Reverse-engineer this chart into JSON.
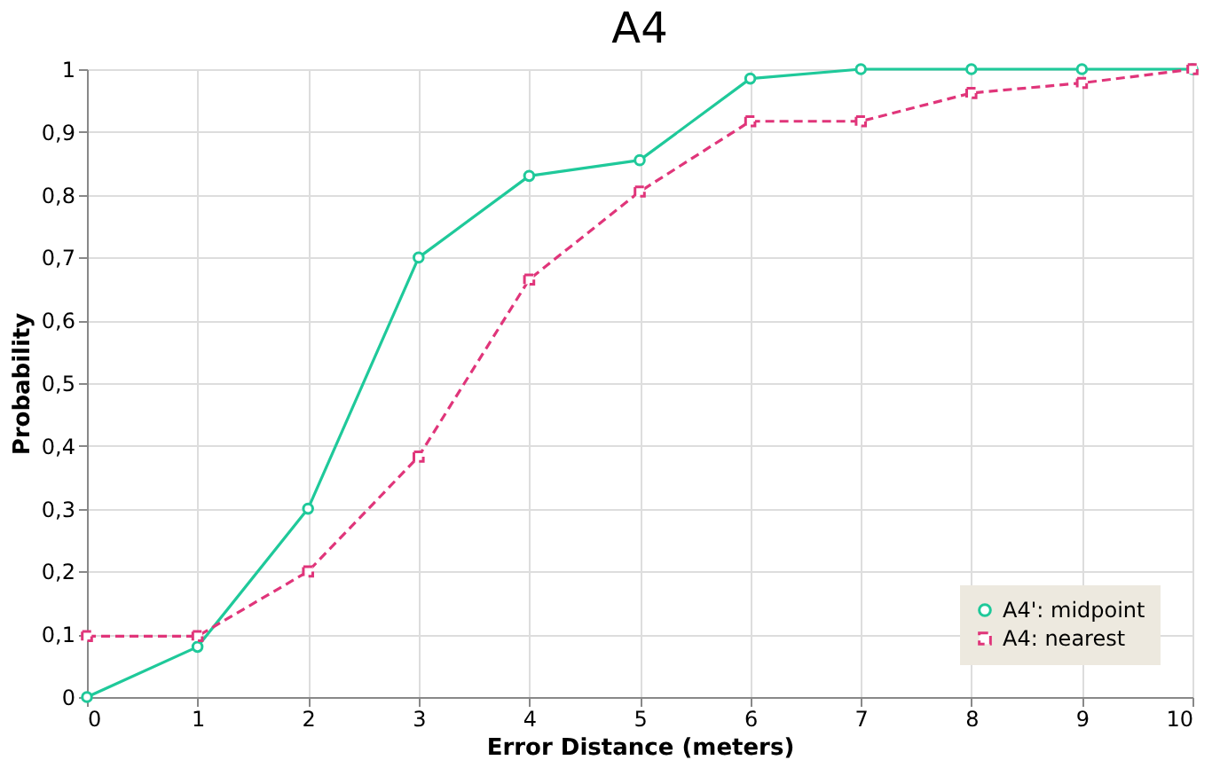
{
  "chart_data": {
    "type": "line",
    "title": "A4",
    "xlabel": "Error Distance (meters)",
    "ylabel": "Probability",
    "x": [
      0,
      1,
      2,
      3,
      4,
      5,
      6,
      7,
      8,
      9,
      10
    ],
    "series": [
      {
        "name": "A4': midpoint",
        "color": "#1fc99a",
        "marker": "circle",
        "line_style": "solid",
        "values": [
          0,
          0.08,
          0.3,
          0.7,
          0.83,
          0.855,
          0.985,
          1,
          1,
          1,
          1
        ]
      },
      {
        "name": "A4: nearest",
        "color": "#e0357a",
        "marker": "square",
        "line_style": "dashed",
        "values": [
          0.097,
          0.097,
          0.2,
          0.383,
          0.665,
          0.805,
          0.917,
          0.917,
          0.962,
          0.978,
          1
        ]
      }
    ],
    "xlim": [
      0,
      10
    ],
    "xticks": [
      0,
      1,
      2,
      3,
      4,
      5,
      6,
      7,
      8,
      9,
      10
    ],
    "ylim": [
      0,
      1
    ],
    "yticks": [
      0,
      {
        "value": 0.1,
        "label": "0,1"
      },
      {
        "value": 0.2,
        "label": "0,2"
      },
      {
        "value": 0.3,
        "label": "0,3"
      },
      {
        "value": 0.4,
        "label": "0,4"
      },
      {
        "value": 0.5,
        "label": "0,5"
      },
      {
        "value": 0.6,
        "label": "0,6"
      },
      {
        "value": 0.7,
        "label": "0,7"
      },
      {
        "value": 0.8,
        "label": "0,8"
      },
      {
        "value": 0.9,
        "label": "0,9"
      },
      1
    ],
    "grid": true,
    "legend": "bottom right"
  }
}
